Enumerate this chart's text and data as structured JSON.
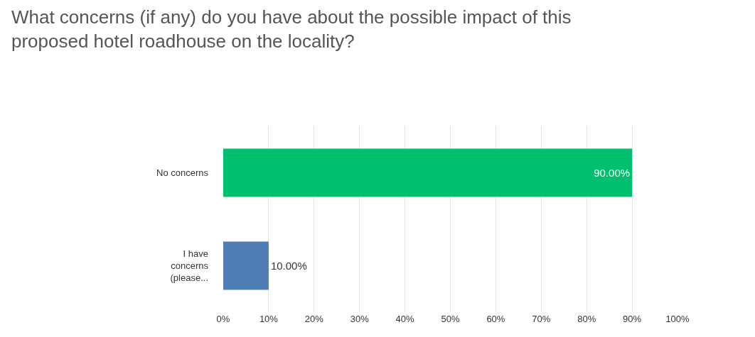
{
  "chart_data": {
    "type": "bar",
    "orientation": "horizontal",
    "title": "What concerns (if any) do you have about the possible impact of this proposed hotel roadhouse on the locality?",
    "categories": [
      "No concerns",
      "I have concerns (please..."
    ],
    "values": [
      90,
      10
    ],
    "colors": [
      "#00bf6f",
      "#507cb6"
    ],
    "value_labels": [
      "90.00%",
      "10.00%"
    ],
    "xlim": [
      0,
      100
    ],
    "xticks": [
      {
        "value": 0,
        "label": "0%"
      },
      {
        "value": 10,
        "label": "10%"
      },
      {
        "value": 20,
        "label": "20%"
      },
      {
        "value": 30,
        "label": "30%"
      },
      {
        "value": 40,
        "label": "40%"
      },
      {
        "value": 50,
        "label": "50%"
      },
      {
        "value": 60,
        "label": "60%"
      },
      {
        "value": 70,
        "label": "70%"
      },
      {
        "value": 80,
        "label": "80%"
      },
      {
        "value": 90,
        "label": "90%"
      },
      {
        "value": 100,
        "label": "100%"
      }
    ],
    "grid": "x"
  }
}
